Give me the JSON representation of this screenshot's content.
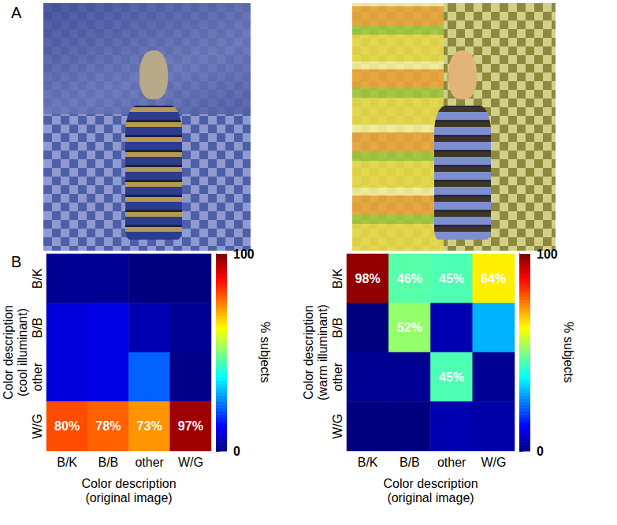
{
  "panel_labels": [
    "A",
    "B"
  ],
  "chart_data": [
    {
      "type": "heatmap",
      "x_label": "Color description\n(original image)",
      "y_label": "Color description\n(cool illuminant)",
      "x_categories": [
        "B/K",
        "B/B",
        "other",
        "W/G"
      ],
      "y_categories": [
        "B/K",
        "B/B",
        "other",
        "W/G"
      ],
      "cells": [
        [
          2,
          2,
          0,
          0
        ],
        [
          9,
          10,
          5,
          2
        ],
        [
          9,
          10,
          22,
          1
        ],
        [
          80,
          78,
          73,
          97
        ]
      ],
      "cell_labels": [
        [
          null,
          null,
          null,
          null
        ],
        [
          null,
          null,
          null,
          null
        ],
        [
          null,
          null,
          null,
          null
        ],
        [
          "80%",
          "78%",
          "73%",
          "97%"
        ]
      ],
      "data_labels": true,
      "colorbar": {
        "label": "% subjects",
        "range": [
          0,
          100
        ],
        "ticks": [
          0,
          100
        ]
      }
    },
    {
      "type": "heatmap",
      "x_label": "Color description\n(original image)",
      "y_label": "Color description\n(warm illuminant)",
      "x_categories": [
        "B/K",
        "B/B",
        "other",
        "W/G"
      ],
      "y_categories": [
        "B/K",
        "B/B",
        "other",
        "W/G"
      ],
      "cells": [
        [
          98,
          46,
          45,
          64
        ],
        [
          0,
          52,
          5,
          30
        ],
        [
          2,
          2,
          45,
          2
        ],
        [
          0,
          0,
          5,
          4
        ]
      ],
      "cell_labels": [
        [
          "98%",
          "46%",
          "45%",
          "64%"
        ],
        [
          null,
          "52%",
          null,
          null
        ],
        [
          null,
          null,
          "45%",
          null
        ],
        [
          null,
          null,
          null,
          null
        ]
      ],
      "data_labels": true,
      "colorbar": {
        "label": "% subjects",
        "range": [
          0,
          100
        ],
        "ticks": [
          0,
          100
        ]
      }
    }
  ]
}
